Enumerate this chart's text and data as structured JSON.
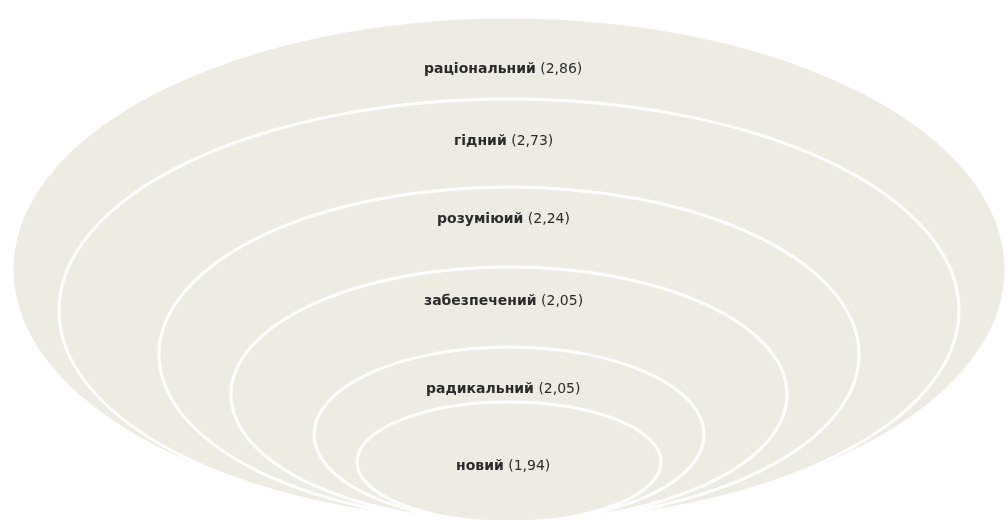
{
  "chart_data": {
    "type": "other",
    "categories": [
      "раціональний",
      "гідний",
      "розуміюий",
      "забезпечений",
      "радикальний",
      "новий"
    ],
    "values": [
      2.86,
      2.73,
      2.24,
      2.05,
      2.05,
      1.94
    ],
    "value_labels": [
      "(2,86)",
      "(2,73)",
      "(2,24)",
      "(2,05)",
      "(2,05)",
      "(1,94)"
    ],
    "colors": [
      "#eeebe3",
      "#eeebe3",
      "#eeebe3",
      "#eeebe3",
      "#eeebe3",
      "#eeebe3"
    ]
  }
}
